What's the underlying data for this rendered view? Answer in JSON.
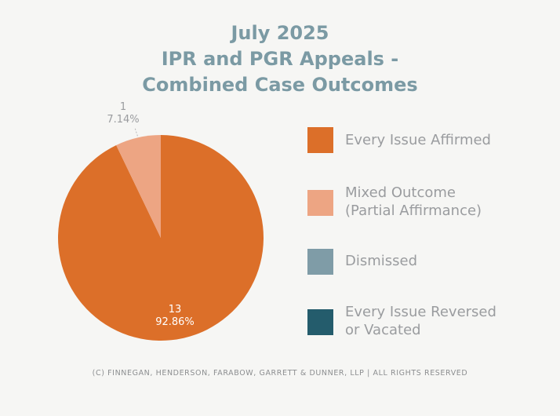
{
  "chart_data": {
    "type": "pie",
    "title_lines": [
      "July 2025",
      "IPR and PGR Appeals -",
      "Combined Case Outcomes"
    ],
    "slices": [
      {
        "label": "Every Issue Affirmed",
        "label_lines": [
          "Every Issue Affirmed"
        ],
        "value": 13,
        "percent": "92.86%",
        "count_label": "13",
        "color": "#dc6f29"
      },
      {
        "label": "Mixed Outcome (Partial Affirmance)",
        "label_lines": [
          "Mixed Outcome",
          "(Partial Affirmance)"
        ],
        "value": 1,
        "percent": "7.14%",
        "count_label": "1",
        "color": "#eda583"
      },
      {
        "label": "Dismissed",
        "label_lines": [
          "Dismissed"
        ],
        "value": 0,
        "percent": "",
        "count_label": "",
        "color": "#7f9ca7"
      },
      {
        "label": "Every Issue Reversed or Vacated",
        "label_lines": [
          "Every Issue Reversed",
          "or Vacated"
        ],
        "value": 0,
        "percent": "",
        "count_label": "",
        "color": "#245c6c"
      }
    ],
    "legend_position": "right"
  },
  "footer": "(C) FINNEGAN, HENDERSON, FARABOW, GARRETT & DUNNER, LLP | ALL RIGHTS RESERVED"
}
